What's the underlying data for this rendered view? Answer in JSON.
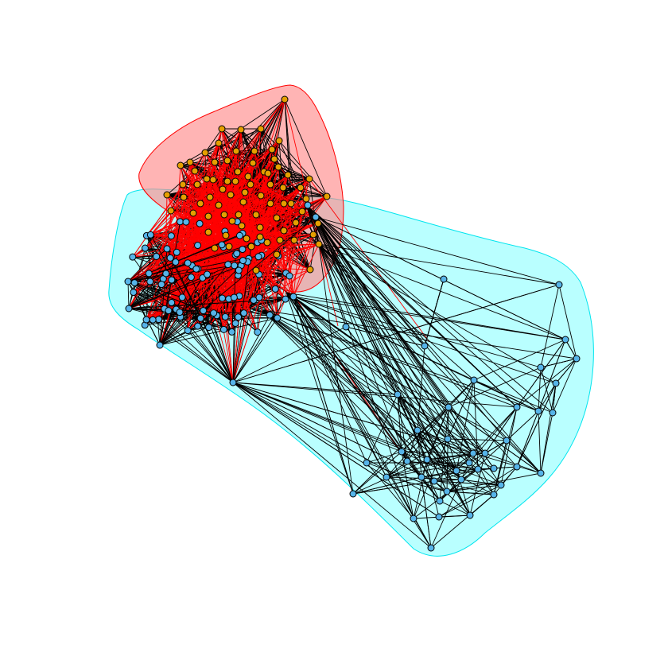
{
  "graph": {
    "type": "network-community-plot",
    "communities": [
      {
        "id": "orange-community",
        "node_color": "#e69f00",
        "hull_fill": "#ff8c8c",
        "hull_stroke": "#ff0000",
        "node_count": 78
      },
      {
        "id": "blue-community",
        "node_color": "#56b4e9",
        "hull_fill": "#a8ffff",
        "hull_stroke": "#00e5ee",
        "node_count": 138
      }
    ],
    "edge_colors": {
      "intra": "#000000",
      "inter": "#ff0000"
    }
  }
}
